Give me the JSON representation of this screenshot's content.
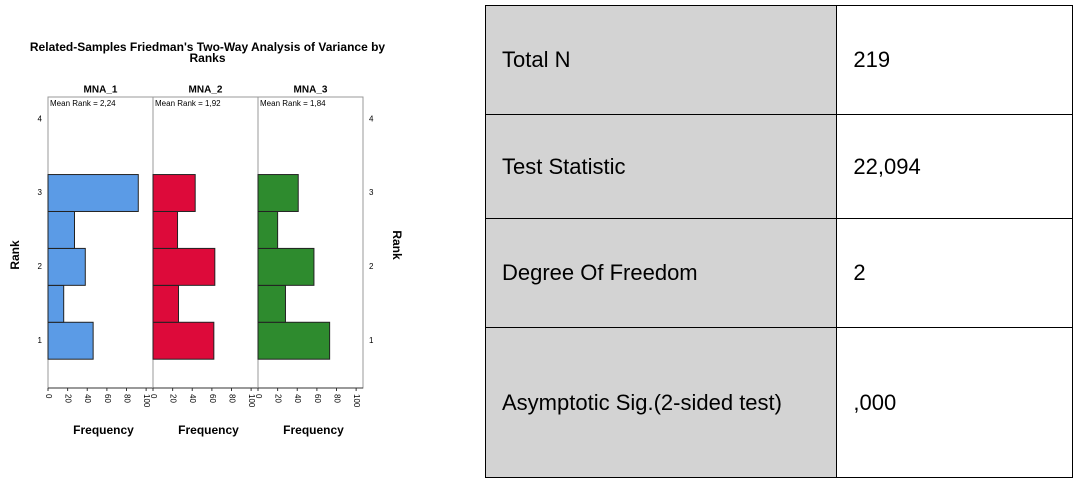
{
  "chart_data": {
    "type": "histogram",
    "orientation": "horizontal",
    "title": "Related-Samples Friedman's Two-Way Analysis of Variance by Ranks",
    "y_label": "Rank",
    "x_label": "Frequency",
    "bins": [
      0.75,
      1.25,
      1.75,
      2.25,
      2.75,
      3.25
    ],
    "xlim": [
      0,
      107
    ],
    "xticks": [
      0,
      20,
      40,
      60,
      80,
      100
    ],
    "ylim": [
      0.36,
      4.3
    ],
    "yticks": [
      1,
      2,
      3,
      4
    ],
    "panels": [
      {
        "name": "MNA_1",
        "annotation": "Mean Rank = 2,24",
        "color": "#5b9be6",
        "values": [
          46,
          16,
          38,
          27,
          92
        ]
      },
      {
        "name": "MNA_2",
        "annotation": "Mean Rank = 1,92",
        "color": "#dd0a3a",
        "values": [
          62,
          26,
          63,
          25,
          43
        ]
      },
      {
        "name": "MNA_3",
        "annotation": "Mean Rank = 1,84",
        "color": "#2e8b2e",
        "values": [
          73,
          28,
          57,
          20,
          41
        ]
      }
    ]
  },
  "table": {
    "rows": [
      [
        "Total N",
        "219"
      ],
      [
        "Test Statistic",
        "22,094"
      ],
      [
        "Degree Of Freedom",
        "2"
      ],
      [
        "Asymptotic Sig.(2-sided test)",
        ",000"
      ]
    ]
  }
}
